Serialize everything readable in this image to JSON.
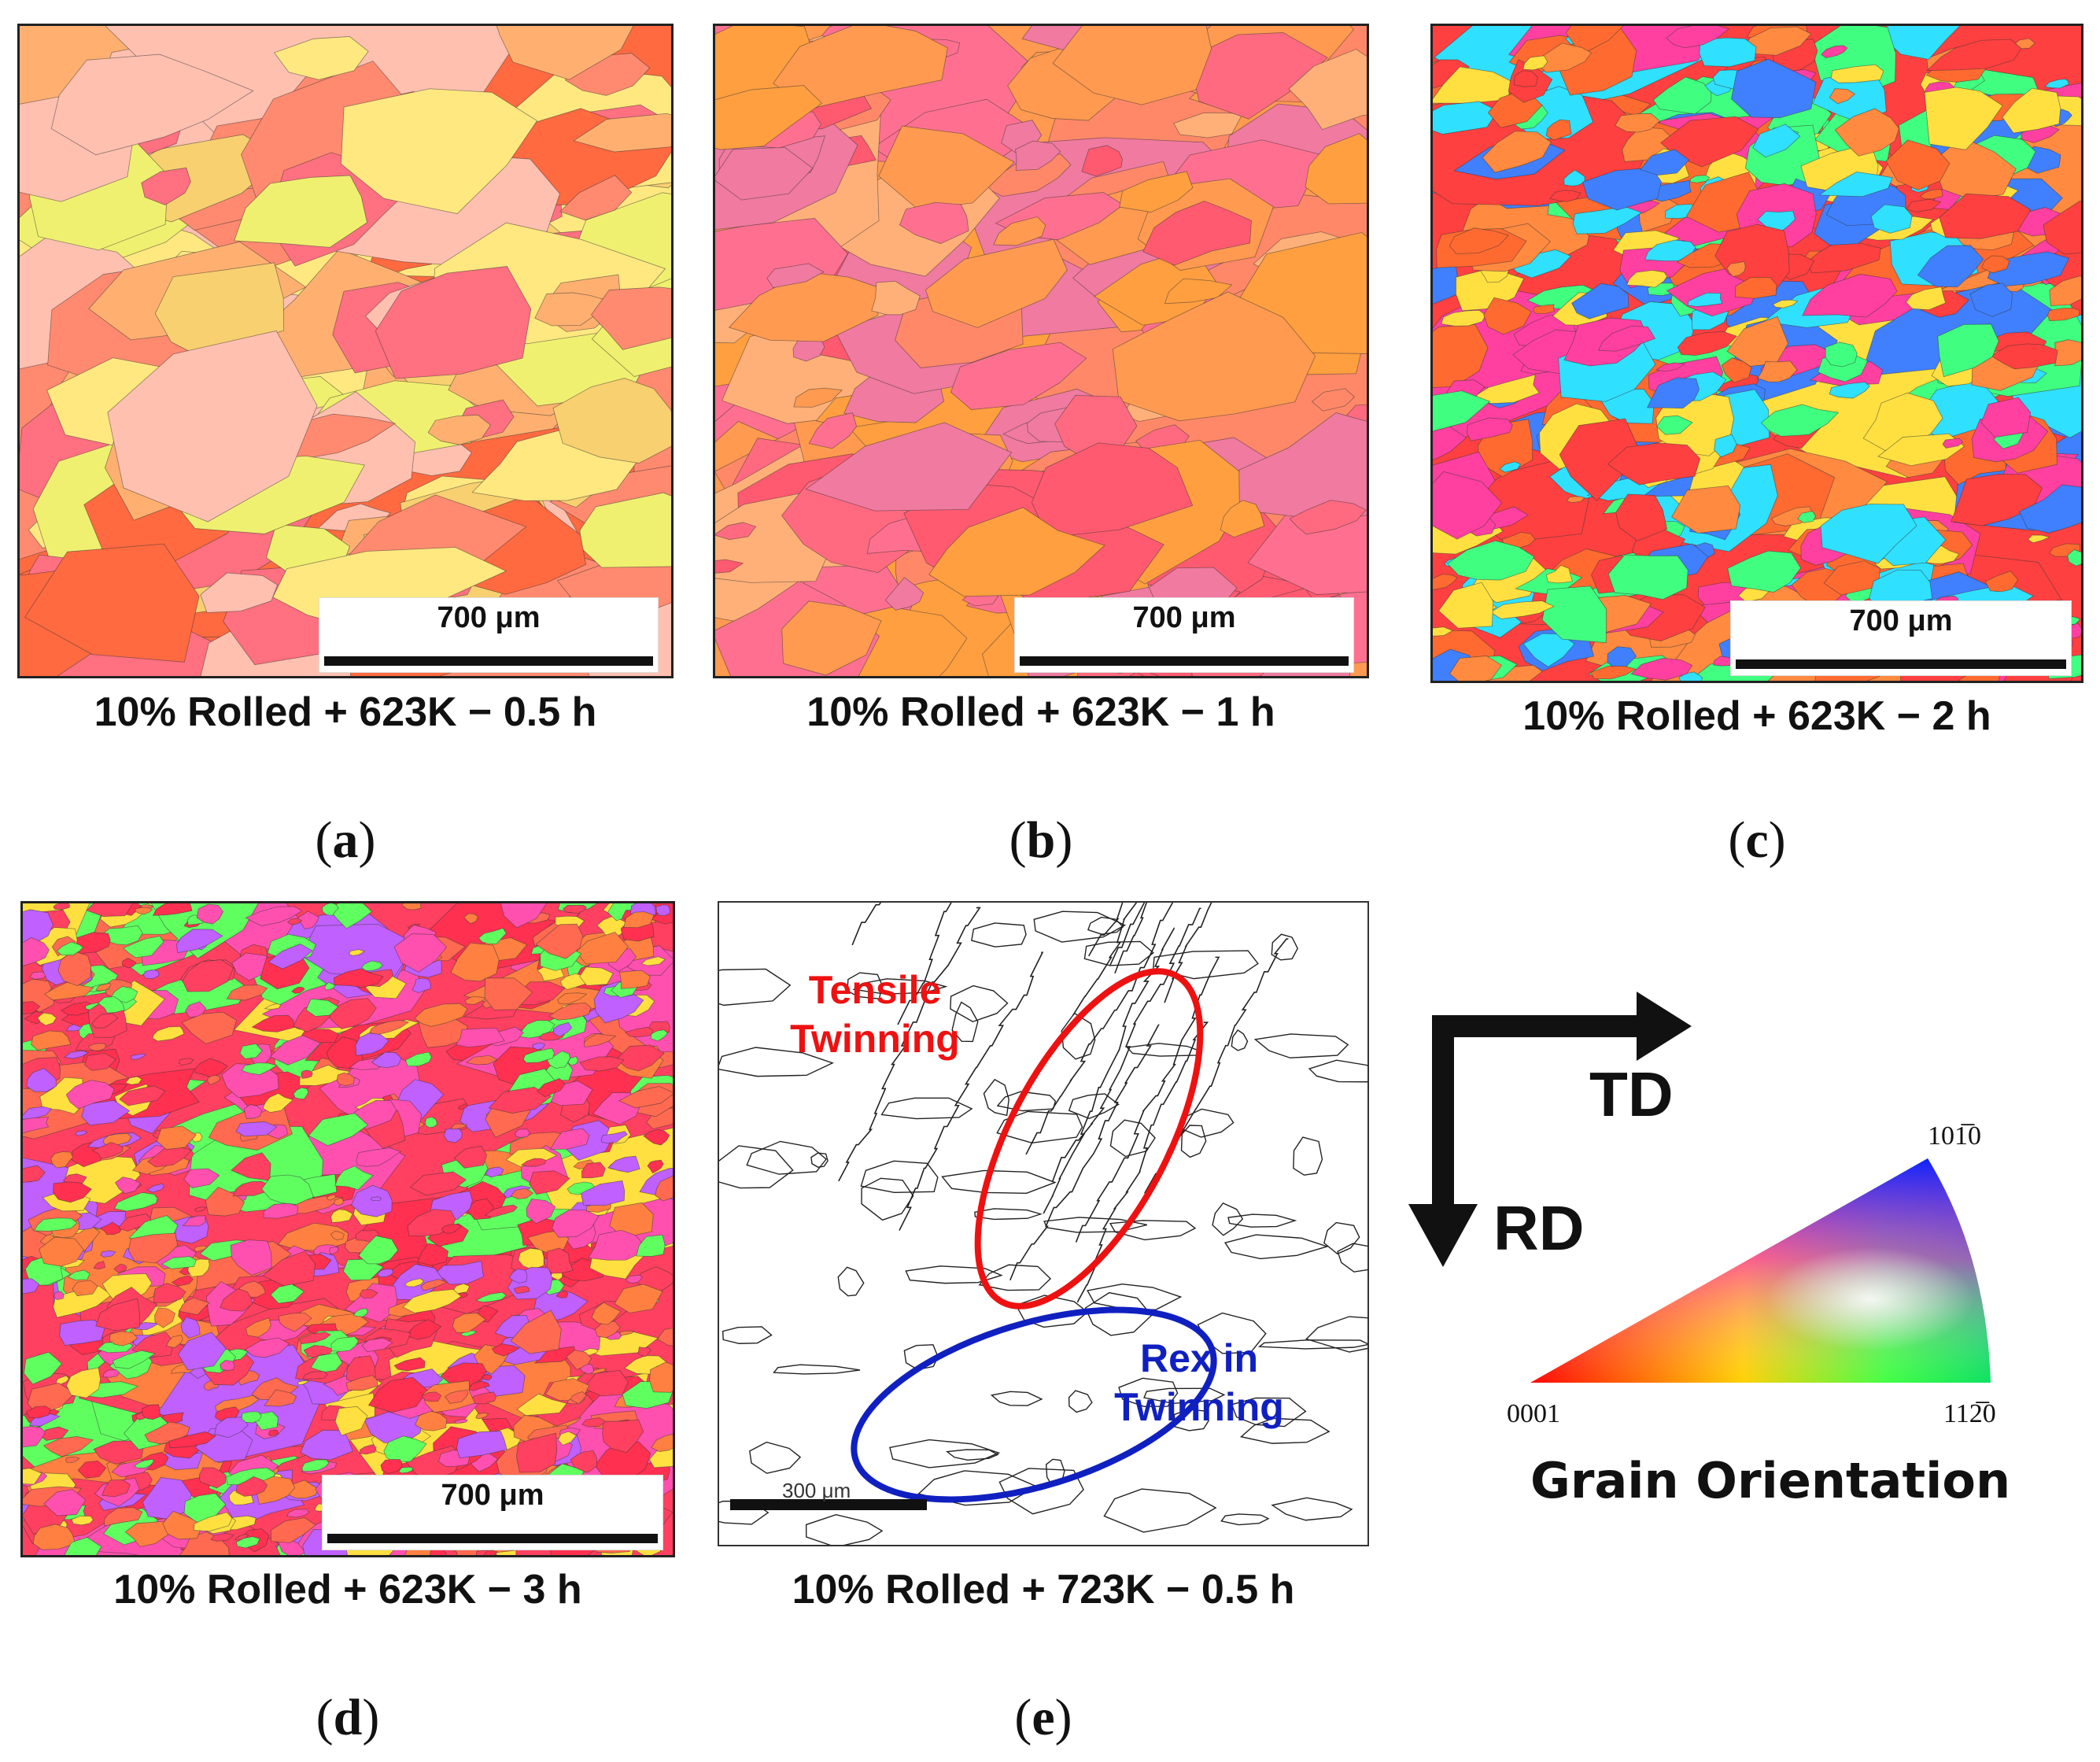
{
  "panels": [
    {
      "id": "a",
      "caption": "10% Rolled + 623K − 0.5 h",
      "label_letter": "a",
      "scale": "700 μm",
      "palette": [
        "#ff8a70",
        "#ffb070",
        "#f8d070",
        "#ffe880",
        "#ff7080",
        "#ff6a40",
        "#f0f070",
        "#ffc0b0"
      ]
    },
    {
      "id": "b",
      "caption": "10% Rolled + 623K − 1 h",
      "label_letter": "b",
      "scale": "700 μm",
      "palette": [
        "#ff9a50",
        "#ff7090",
        "#ff8868",
        "#ff6a80",
        "#ffb078",
        "#ff5a70",
        "#ff9f40",
        "#f07aa0"
      ]
    },
    {
      "id": "c",
      "caption": "10% Rolled + 623K − 2 h",
      "label_letter": "c",
      "scale": "700 μm",
      "palette": [
        "#ff4040",
        "#ff8a40",
        "#ff40a0",
        "#ffe040",
        "#40ff80",
        "#4080ff",
        "#30e0ff",
        "#ff6a30"
      ]
    },
    {
      "id": "d",
      "caption": "10% Rolled + 623K − 3 h",
      "label_letter": "d",
      "scale": "700 μm",
      "palette": [
        "#ff4060",
        "#ff8040",
        "#ff50b0",
        "#ffe040",
        "#60ff60",
        "#ff6a50",
        "#c060ff",
        "#ff3050"
      ]
    }
  ],
  "panel_e": {
    "caption": "10% Rolled + 723K − 0.5 h",
    "label_letter": "e",
    "scale": "300 μm",
    "tensile": "Tensile Twinning",
    "tensile_line1": "Tensile",
    "tensile_line2": "Twinning",
    "rex_line1": "Rex in",
    "rex_line2": "Twinning",
    "tensile_color": "#ee1111",
    "rex_color": "#1020c0"
  },
  "legend": {
    "td": "TD",
    "rd": "RD",
    "title": "Grain Orientation",
    "corner_0001": "0001",
    "corner_1010": "101̅0",
    "corner_1120": "112̅0"
  }
}
